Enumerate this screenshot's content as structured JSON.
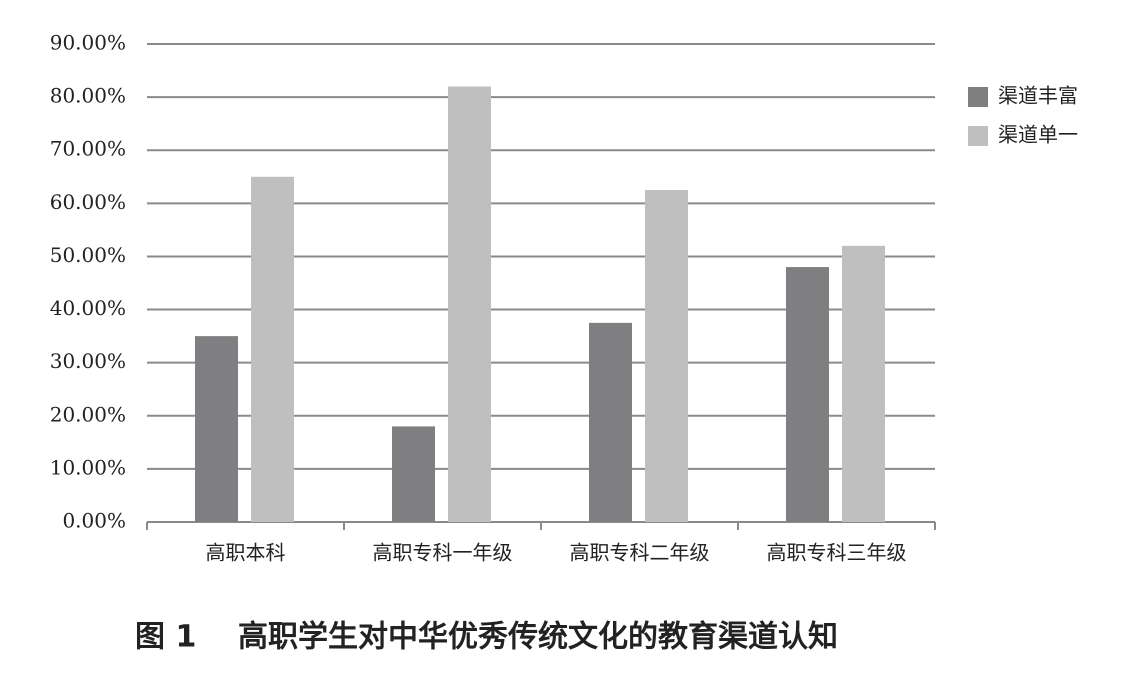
{
  "chart_data": {
    "type": "bar",
    "figure_label": "图 1",
    "title": "高职学生对中华优秀传统文化的教育渠道认知",
    "categories": [
      "高职本科",
      "高职专科一年级",
      "高职专科二年级",
      "高职专科三年级"
    ],
    "series": [
      {
        "name": "渠道丰富",
        "color": "#7f7f81",
        "values": [
          35,
          18,
          37.5,
          48
        ]
      },
      {
        "name": "渠道单一",
        "color": "#bfbfbf",
        "values": [
          65,
          82,
          62.5,
          52
        ]
      }
    ],
    "ylim": [
      0,
      90
    ],
    "yticks": [
      {
        "value": 0,
        "label": "0.00%"
      },
      {
        "value": 10,
        "label": "10.00%"
      },
      {
        "value": 20,
        "label": "20.00%"
      },
      {
        "value": 30,
        "label": "30.00%"
      },
      {
        "value": 40,
        "label": "40.00%"
      },
      {
        "value": 50,
        "label": "50.00%"
      },
      {
        "value": 60,
        "label": "60.00%"
      },
      {
        "value": 70,
        "label": "70.00%"
      },
      {
        "value": 80,
        "label": "80.00%"
      },
      {
        "value": 90,
        "label": "90.00%"
      }
    ],
    "grid": true,
    "legend": "right"
  }
}
